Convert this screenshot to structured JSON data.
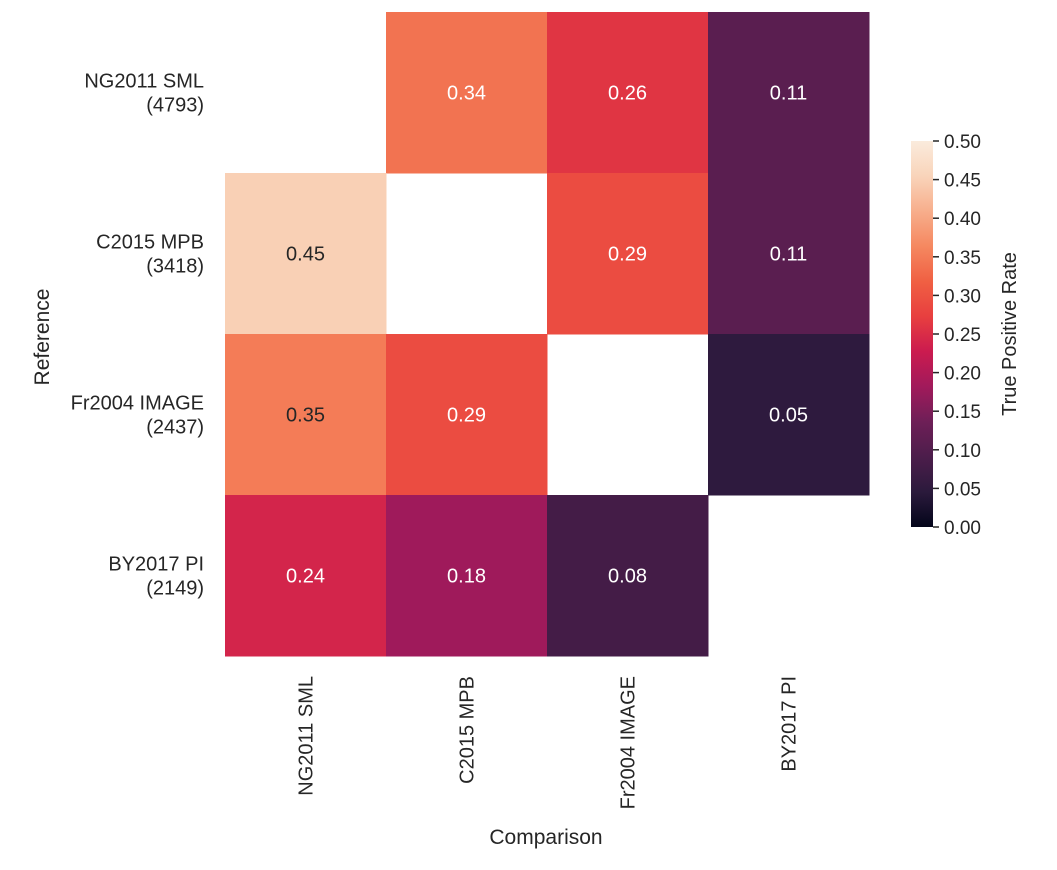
{
  "chart_data": {
    "type": "heatmap",
    "title": "",
    "xlabel": "Comparison",
    "ylabel": "Reference",
    "x_categories": [
      "NG2011 SML",
      "C2015 MPB",
      "Fr2004 IMAGE",
      "BY2017 PI"
    ],
    "y_categories": [
      {
        "name": "NG2011 SML",
        "count": "(4793)"
      },
      {
        "name": "C2015 MPB",
        "count": "(3418)"
      },
      {
        "name": "Fr2004 IMAGE",
        "count": "(2437)"
      },
      {
        "name": "BY2017 PI",
        "count": "(2149)"
      }
    ],
    "values": [
      [
        null,
        0.34,
        0.26,
        0.11
      ],
      [
        0.45,
        null,
        0.29,
        0.11
      ],
      [
        0.35,
        0.29,
        null,
        0.05
      ],
      [
        0.24,
        0.18,
        0.08,
        null
      ]
    ],
    "value_format": "0.00",
    "colorbar": {
      "label": "True Positive Rate",
      "range": [
        0.0,
        0.5
      ],
      "ticks": [
        "0.00",
        "0.05",
        "0.10",
        "0.15",
        "0.20",
        "0.25",
        "0.30",
        "0.35",
        "0.40",
        "0.45",
        "0.50"
      ],
      "colormap": "rocket",
      "stops": [
        "#03051a",
        "#2b1a3c",
        "#4c1d4b",
        "#6e1f57",
        "#a11a5b",
        "#cb1b4f",
        "#e83f3f",
        "#f06043",
        "#f58860",
        "#f7ae8c",
        "#f9d4ba",
        "#faebdd"
      ]
    },
    "grid": false,
    "legend": "colorbar-right"
  }
}
